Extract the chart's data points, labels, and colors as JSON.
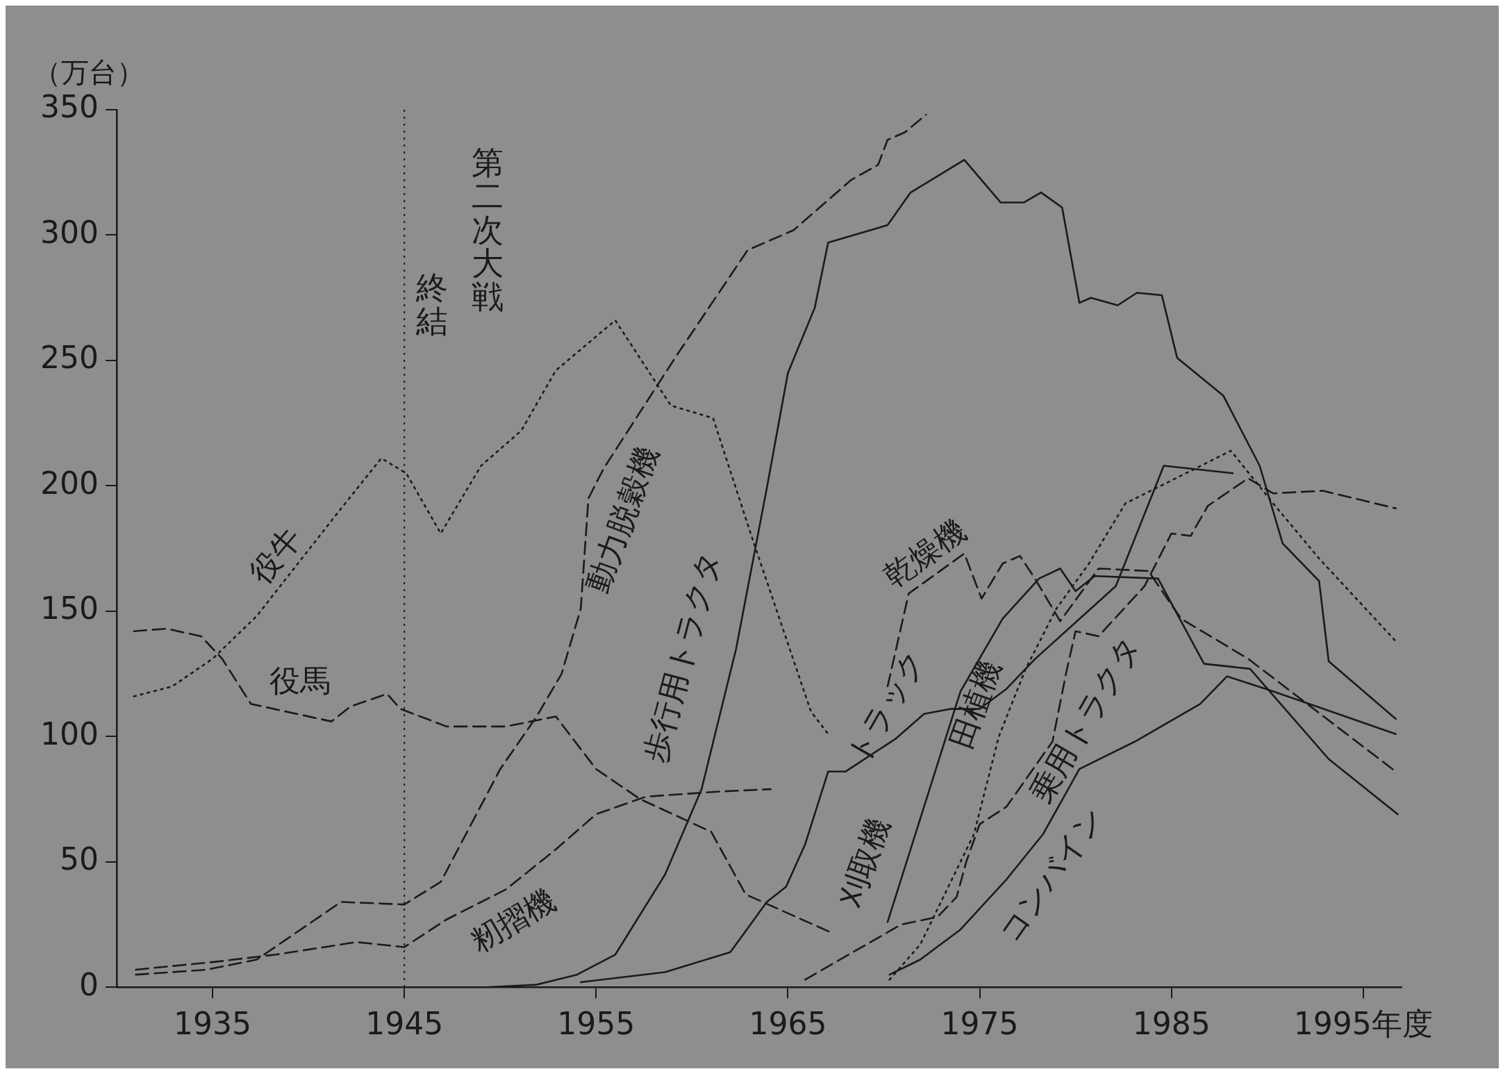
{
  "chart_data": {
    "type": "line",
    "ylabel": "（万台）",
    "xlim": [
      1930,
      1997
    ],
    "xticks": [
      1935,
      1945,
      1955,
      1965,
      1975,
      1985,
      {
        "value": 1995,
        "label": "1995年度"
      }
    ],
    "ylim": [
      0,
      350
    ],
    "yticks": [
      0,
      50,
      100,
      150,
      200,
      250,
      300,
      350
    ],
    "grid": false,
    "marker": "none",
    "ref_lines": [
      {
        "axis": "x",
        "value": 1945,
        "label": "第二次大戦終結",
        "line_style": "dotted"
      }
    ],
    "series": [
      {
        "name": "役牛",
        "color": "#1a1a1a",
        "line_style": "dotted",
        "x": [
          1930.9,
          1932.9,
          1935,
          1937.3,
          1941.5,
          1943.8,
          1945.1,
          1946.9,
          1949,
          1951.1,
          1952.9,
          1956,
          1958.9,
          1961.1,
          1963.1,
          1966.2,
          1967.1
        ],
        "values": [
          116,
          120,
          131,
          148,
          189,
          211,
          205,
          181,
          208,
          222,
          246,
          266,
          232,
          227,
          180,
          110,
          101
        ]
      },
      {
        "name": "役馬",
        "color": "#1a1a1a",
        "line_style": "dashed",
        "x": [
          1930.9,
          1932.6,
          1934.4,
          1935.5,
          1937,
          1941.2,
          1942.2,
          1944.1,
          1944.8,
          1947.2,
          1950.3,
          1952.9,
          1955,
          1957.3,
          1961,
          1962.8,
          1967.2
        ],
        "values": [
          142,
          143,
          140,
          131,
          113,
          106,
          112,
          117,
          111,
          104,
          104,
          108,
          87,
          75,
          62,
          37,
          22
        ]
      },
      {
        "name": "動力脱穀機",
        "color": "#1a1a1a",
        "line_style": "dashed",
        "x": [
          1931,
          1934.7,
          1937.3,
          1941.7,
          1945,
          1946.9,
          1950,
          1951.9,
          1953.2,
          1954.2,
          1954.6,
          1955.4,
          1959.2,
          1962.9,
          1965.3,
          1968.3,
          1969.7,
          1970.2,
          1971.1,
          1972.2
        ],
        "values": [
          5,
          7,
          11,
          34,
          33,
          42,
          87,
          108,
          125,
          151,
          195,
          207,
          252,
          294,
          302,
          322,
          328,
          338,
          341,
          348
        ]
      },
      {
        "name": "籾摺機",
        "color": "#1a1a1a",
        "line_style": "dashed",
        "x": [
          1931,
          1935,
          1938.3,
          1942.5,
          1945,
          1947.2,
          1950.3,
          1952.9,
          1955,
          1957.6,
          1961.3,
          1964.1
        ],
        "values": [
          7,
          10,
          13,
          18,
          16,
          27,
          39,
          55,
          69,
          76,
          78,
          79
        ]
      },
      {
        "name": "歩行用トラクタ",
        "color": "#1a1a1a",
        "line_style": "solid",
        "x": [
          1949.3,
          1951.9,
          1954,
          1956,
          1958.6,
          1960.5,
          1962.3,
          1963.9,
          1965,
          1966.4,
          1967.1,
          1970.2,
          1971.4,
          1974.2,
          1976.1,
          1977.3,
          1978.2,
          1979.3,
          1980.2,
          1980.8,
          1982.2,
          1983.2,
          1984.5,
          1985.3,
          1987.7,
          1989.6,
          1990.8,
          1992.7,
          1993.2,
          1996.7
        ],
        "values": [
          0,
          1,
          5,
          13,
          45,
          79,
          135,
          199,
          245,
          271,
          297,
          304,
          317,
          330,
          313,
          313,
          317,
          311,
          273,
          275,
          272,
          277,
          276,
          251,
          236,
          208,
          177,
          162,
          130,
          107
        ]
      },
      {
        "name": "トラック",
        "color": "#1a1a1a",
        "line_style": "solid",
        "x": [
          1954.2,
          1958.6,
          1962,
          1963.9,
          1964.9,
          1965.9,
          1967.1,
          1968,
          1970.6,
          1972.1,
          1973.5,
          1975,
          1976.4,
          1977.9,
          1982.1,
          1984.6,
          1988.2
        ],
        "values": [
          2,
          6,
          14,
          34,
          40,
          57,
          86,
          86,
          99,
          109,
          111,
          111,
          119,
          131,
          160,
          208,
          205
        ]
      },
      {
        "name": "刈取機",
        "color": "#1a1a1a",
        "line_style": "solid",
        "x": [
          1970.2,
          1974,
          1976.2,
          1978.1,
          1979.2,
          1980,
          1981,
          1984.3,
          1986.7,
          1989.1,
          1993.2,
          1996.8
        ],
        "values": [
          26,
          118,
          147,
          163,
          167,
          158,
          164,
          163,
          129,
          127,
          91,
          69
        ]
      },
      {
        "name": "田植機",
        "color": "#1a1a1a",
        "line_style": "dotted",
        "x": [
          1970.3,
          1971.9,
          1974.7,
          1976,
          1977.4,
          1979,
          1980.7,
          1982.6,
          1985.5,
          1988.1,
          1990.3,
          1992.7,
          1996.7
        ],
        "values": [
          3,
          17,
          61,
          100,
          127,
          151,
          169,
          193,
          204,
          214,
          193,
          171,
          138
        ]
      },
      {
        "name": "乾燥機",
        "color": "#1a1a1a",
        "line_style": "dashed",
        "x": [
          1970.2,
          1971.3,
          1974.2,
          1975.1,
          1976.2,
          1977.1,
          1977.8,
          1979.2,
          1981.2,
          1983.8,
          1985.5,
          1989,
          1996.7
        ],
        "values": [
          120,
          157,
          173,
          155,
          169,
          172,
          164,
          146,
          167,
          166,
          147,
          131,
          86
        ]
      },
      {
        "name": "乗用トラクタ",
        "color": "#1a1a1a",
        "line_style": "dashed",
        "x": [
          1965.9,
          1970.9,
          1972.8,
          1973.8,
          1974.3,
          1975,
          1976.4,
          1978.8,
          1979.5,
          1980,
          1981.2,
          1983.6,
          1985,
          1986,
          1986.9,
          1989,
          1990.3,
          1992.9,
          1996.7
        ],
        "values": [
          3,
          25,
          28,
          36,
          50,
          65,
          72,
          98,
          125,
          142,
          140,
          160,
          181,
          180,
          192,
          203,
          197,
          198,
          191
        ]
      },
      {
        "name": "コンバイン",
        "color": "#1a1a1a",
        "line_style": "solid",
        "x": [
          1970.3,
          1971.9,
          1974,
          1976.4,
          1978.3,
          1980.2,
          1983.1,
          1986.5,
          1987.9,
          1990.3,
          1996.7
        ],
        "values": [
          5,
          11,
          23,
          43,
          61,
          87,
          98,
          113,
          124,
          118,
          101
        ]
      }
    ]
  }
}
